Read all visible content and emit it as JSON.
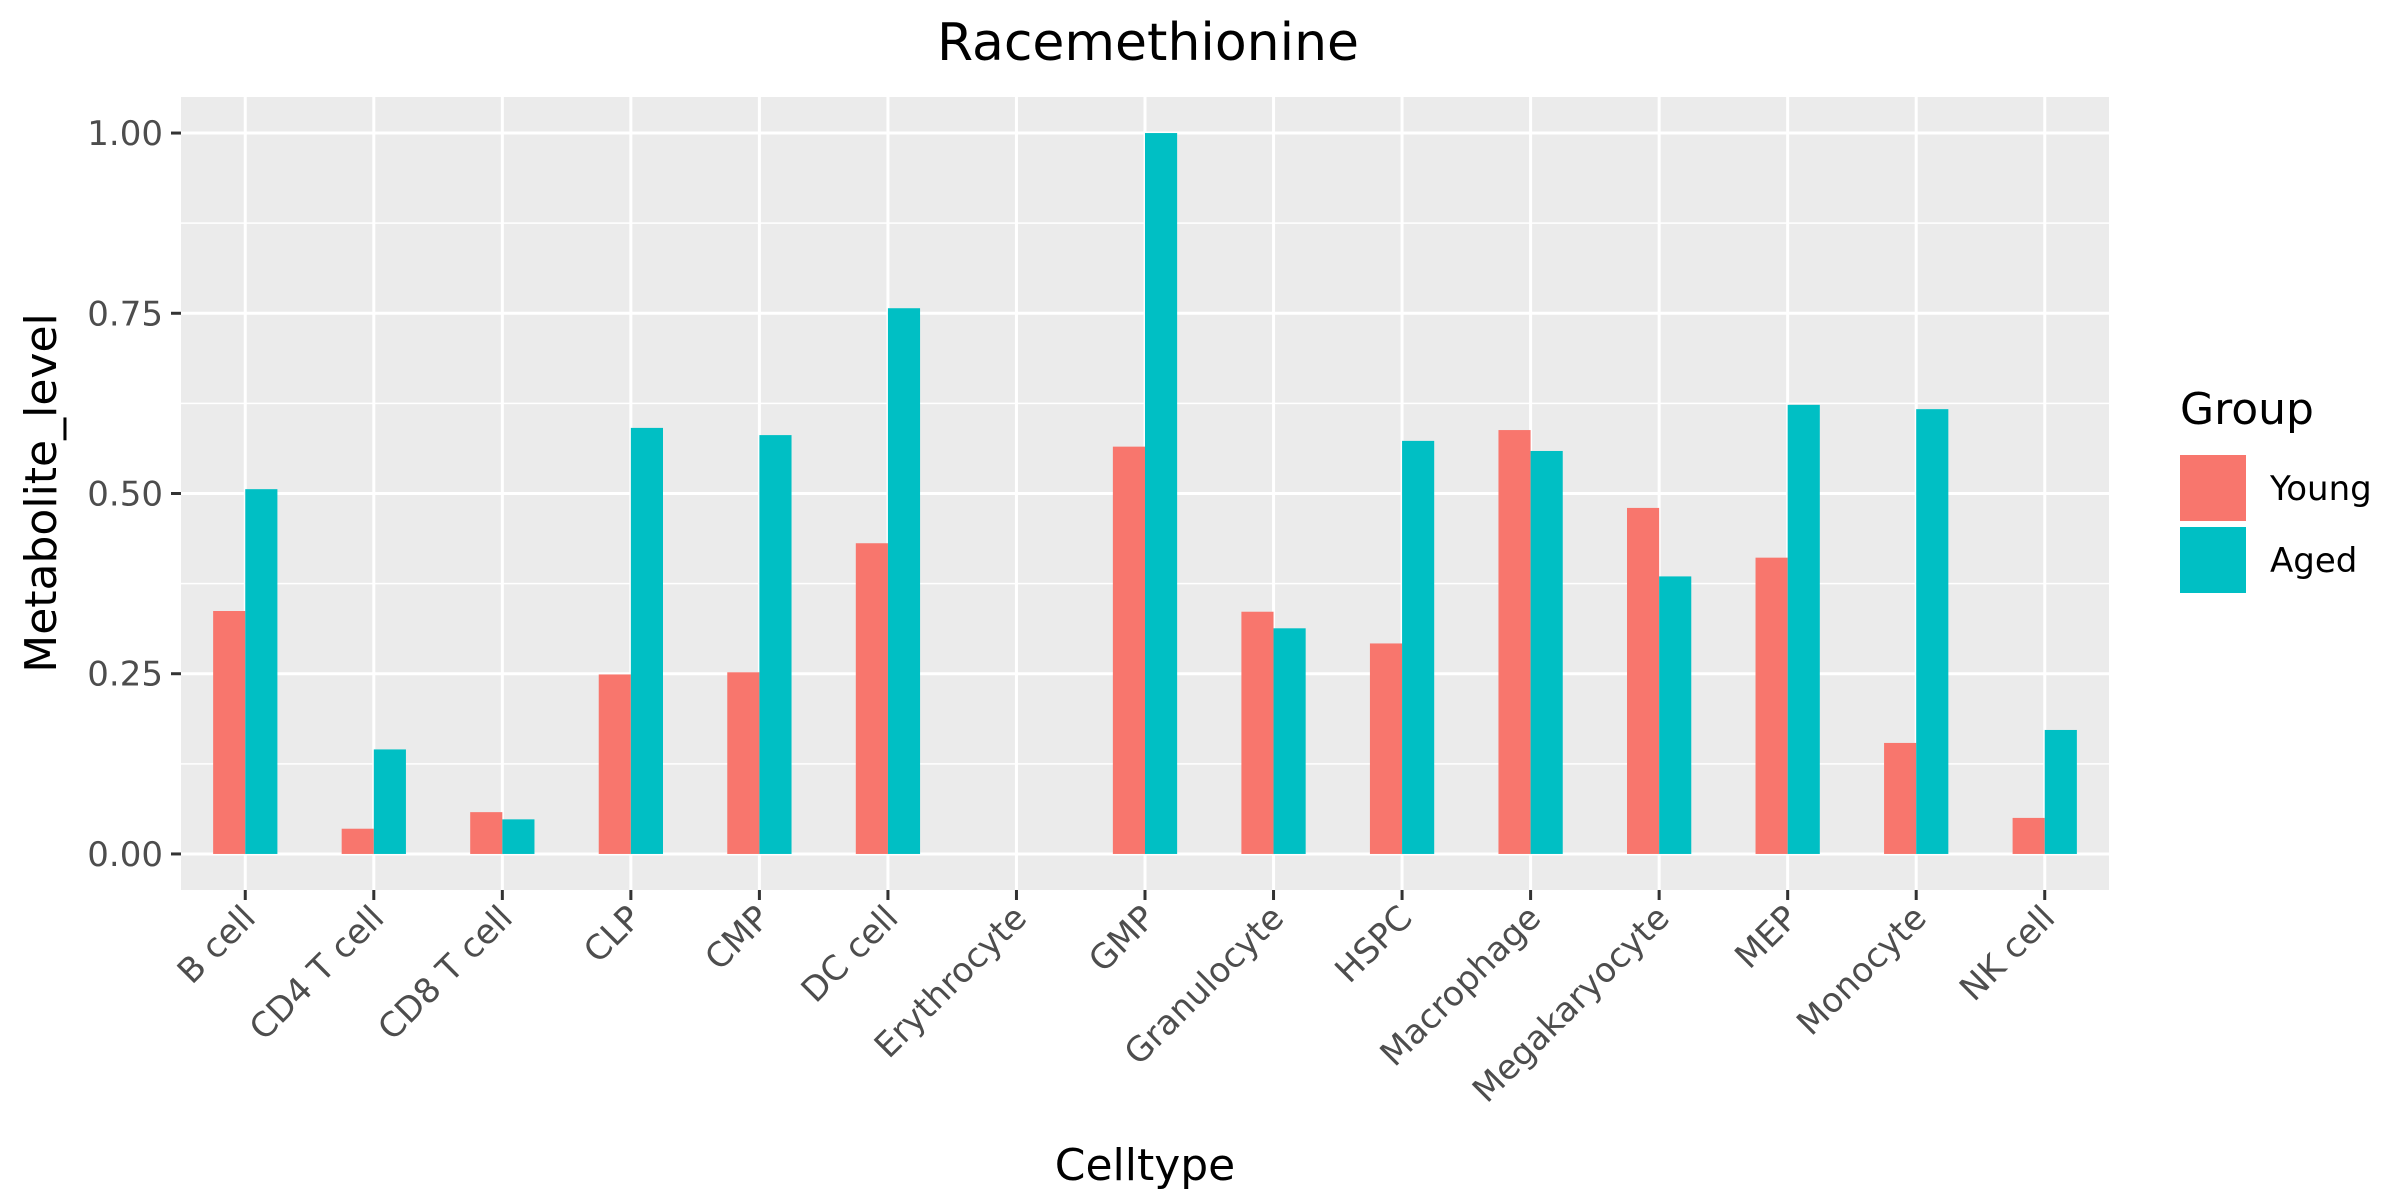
{
  "chart_data": {
    "type": "bar",
    "title": "Racemethionine",
    "xlabel": "Celltype",
    "ylabel": "Metabolite_level",
    "ylim": [
      -0.05,
      1.05
    ],
    "yticks": [
      "0.00",
      "0.25",
      "0.50",
      "0.75",
      "1.00"
    ],
    "ytick_values": [
      0,
      0.25,
      0.5,
      0.75,
      1.0
    ],
    "grid": true,
    "legend": {
      "title": "Group",
      "position": "right"
    },
    "categories": [
      "B cell",
      "CD4 T cell",
      "CD8 T cell",
      "CLP",
      "CMP",
      "DC cell",
      "Erythrocyte",
      "GMP",
      "Granulocyte",
      "HSPC",
      "Macrophage",
      "Megakaryocyte",
      "MEP",
      "Monocyte",
      "NK cell"
    ],
    "series": [
      {
        "name": "Young",
        "color": "#F8766D",
        "values": [
          0.337,
          0.035,
          0.058,
          0.249,
          0.252,
          0.431,
          0.0,
          0.565,
          0.336,
          0.292,
          0.588,
          0.48,
          0.411,
          0.154,
          0.05
        ]
      },
      {
        "name": "Aged",
        "color": "#00BFC4",
        "values": [
          0.506,
          0.145,
          0.048,
          0.591,
          0.581,
          0.757,
          0.0,
          1.0,
          0.313,
          0.573,
          0.559,
          0.385,
          0.623,
          0.617,
          0.172
        ]
      }
    ]
  }
}
